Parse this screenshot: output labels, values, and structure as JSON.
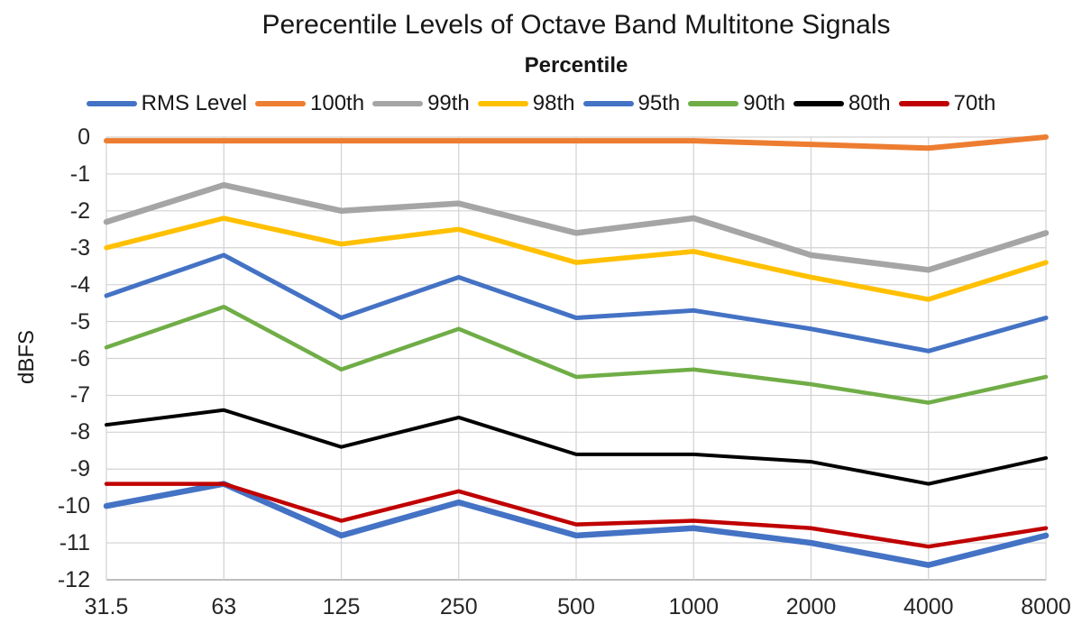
{
  "title": "Perecentile Levels of Octave Band Multitone Signals",
  "legend": {
    "title": "Percentile"
  },
  "chart_data": {
    "type": "line",
    "title": "Perecentile Levels of Octave Band Multitone Signals",
    "legend_title": "Percentile",
    "legend_position": "top",
    "grid": true,
    "xlabel": "",
    "ylabel": "dBFS",
    "x_categories": [
      "31.5",
      "63",
      "125",
      "250",
      "500",
      "1000",
      "2000",
      "4000",
      "8000"
    ],
    "ylim": [
      -12,
      0
    ],
    "y_ticks": [
      0,
      -1,
      -2,
      -3,
      -4,
      -5,
      -6,
      -7,
      -8,
      -9,
      -10,
      -11,
      -12
    ],
    "grid_color": "#D2D2D2",
    "axis_line_color": "#BFBFBF",
    "series": [
      {
        "name": "RMS Level",
        "color": "#4472C4",
        "width": 6.5,
        "values": [
          -10.0,
          -9.4,
          -10.8,
          -9.9,
          -10.8,
          -10.6,
          -11.0,
          -11.6,
          -10.8
        ]
      },
      {
        "name": "100th",
        "color": "#ED7D31",
        "width": 6,
        "values": [
          -0.1,
          -0.1,
          -0.1,
          -0.1,
          -0.1,
          -0.1,
          -0.2,
          -0.3,
          0.0
        ]
      },
      {
        "name": "99th",
        "color": "#A5A5A5",
        "width": 6.5,
        "values": [
          -2.3,
          -1.3,
          -2.0,
          -1.8,
          -2.6,
          -2.2,
          -3.2,
          -3.6,
          -2.6
        ]
      },
      {
        "name": "98th",
        "color": "#FFC000",
        "width": 5.5,
        "values": [
          -3.0,
          -2.2,
          -2.9,
          -2.5,
          -3.4,
          -3.1,
          -3.8,
          -4.4,
          -3.4
        ]
      },
      {
        "name": "95th",
        "color": "#4472C4",
        "width": 5,
        "values": [
          -4.3,
          -3.2,
          -4.9,
          -3.8,
          -4.9,
          -4.7,
          -5.2,
          -5.8,
          -4.9
        ]
      },
      {
        "name": "90th",
        "color": "#70AD47",
        "width": 4.5,
        "values": [
          -5.7,
          -4.6,
          -6.3,
          -5.2,
          -6.5,
          -6.3,
          -6.7,
          -7.2,
          -6.5
        ]
      },
      {
        "name": "80th",
        "color": "#000000",
        "width": 4,
        "values": [
          -7.8,
          -7.4,
          -8.4,
          -7.6,
          -8.6,
          -8.6,
          -8.8,
          -9.4,
          -8.7
        ]
      },
      {
        "name": "70th",
        "color": "#C00000",
        "width": 4.5,
        "values": [
          -9.4,
          -9.4,
          -10.4,
          -9.6,
          -10.5,
          -10.4,
          -10.6,
          -11.1,
          -10.6
        ]
      }
    ]
  }
}
